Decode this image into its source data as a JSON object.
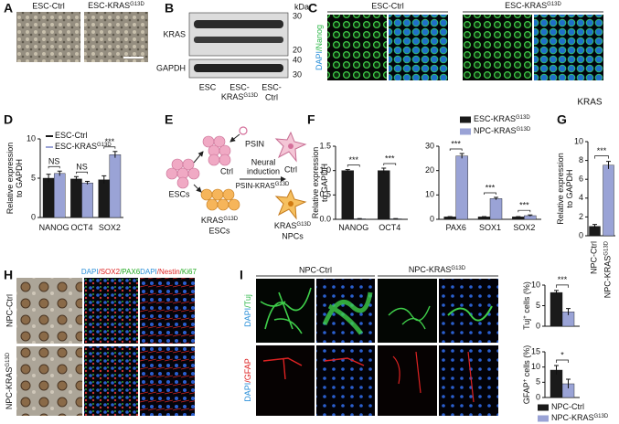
{
  "letters": [
    "A",
    "B",
    "C",
    "D",
    "E",
    "F",
    "G",
    "H",
    "I"
  ],
  "A": {
    "labels": [
      {
        "text": "ESC-Ctrl"
      },
      {
        "text": "ESC-KRAS",
        "sup": "G13D"
      }
    ]
  },
  "B": {
    "unit": "kDa",
    "markers_kras": [
      "30",
      "20"
    ],
    "markers_gapdh": [
      "40",
      "30"
    ],
    "bands": [
      "KRAS",
      "GAPDH"
    ],
    "lanes": [
      {
        "lines": [
          "ESC"
        ]
      },
      {
        "lines": [
          "ESC-",
          "KRAS"
        ],
        "sup": "G13D"
      },
      {
        "lines": [
          "ESC-",
          "Ctrl"
        ]
      }
    ]
  },
  "C": {
    "labels": [
      {
        "text": "ESC-Ctrl"
      },
      {
        "text": "ESC-KRAS",
        "sup": "G13D"
      }
    ],
    "stain": [
      "DAPI",
      "/Nanog"
    ]
  },
  "E": {
    "start": "ESCs",
    "vector": "PSIN",
    "ctrl_cell": "Ctrl",
    "ctrl_result": "Ctrl",
    "step": [
      "Neural",
      "induction"
    ],
    "vector2": {
      "text": "PSIN-KRAS",
      "sup": "G13D"
    },
    "kras_cell": {
      "text": "KRAS",
      "sup": "G13D",
      "line2": "ESCs"
    },
    "kras_result": {
      "text": "KRAS",
      "sup": "G13D",
      "line2": "NPCs"
    }
  },
  "H": {
    "stains": [
      [
        "DAPI",
        "/SOX2",
        "/PAX6"
      ],
      [
        "DAPI",
        "/Nestin",
        "/Ki67"
      ]
    ],
    "rows": [
      {
        "text": "NPC-Ctrl"
      },
      {
        "text": "NPC-KRAS",
        "sup": "G13D"
      }
    ]
  },
  "I": {
    "columns": [
      {
        "text": "NPC-Ctrl"
      },
      {
        "text": "NPC-KRAS",
        "sup": "G13D"
      }
    ],
    "rows": [
      [
        "DAPI",
        "/Tuj"
      ],
      [
        "DAPI",
        "/GFAP"
      ]
    ]
  },
  "chart_data": [
    {
      "type": "bar",
      "y_label": [
        "Relative expression",
        "to GAPDH"
      ],
      "categories": [
        "NANOG",
        "OCT4",
        "SOX2"
      ],
      "series": [
        {
          "name": "ESC-Ctrl",
          "color": "#1a1a1a",
          "values": [
            5.0,
            4.9,
            4.8
          ],
          "errors": [
            0.5,
            0.3,
            0.5
          ]
        },
        {
          "name": "ESC-KRAS",
          "name_sup": "G13D",
          "color": "#9aa3d6",
          "values": [
            5.6,
            4.4,
            8.0
          ],
          "errors": [
            0.3,
            0.2,
            0.4
          ]
        }
      ],
      "significance": [
        "NS",
        "NS",
        "***"
      ],
      "ylim": [
        0,
        10
      ],
      "yticks": [
        0,
        5,
        10
      ]
    },
    {
      "type": "bar",
      "y_label": [
        "Relative expression",
        "to GAPDH"
      ],
      "categories": [
        "NANOG",
        "OCT4"
      ],
      "series": [
        {
          "color": "#1a1a1a",
          "values": [
            1.0,
            1.0
          ],
          "errors": [
            0.02,
            0.05
          ]
        },
        {
          "color": "#9aa3d6",
          "values": [
            0.01,
            0.01
          ],
          "errors": [
            0.005,
            0.005
          ]
        }
      ],
      "significance": [
        "***",
        "***"
      ],
      "ylim": [
        0,
        1.5
      ],
      "yticks": [
        {
          "value": 0,
          "label": "0.0"
        },
        {
          "value": 0.5,
          "label": "0.5"
        },
        {
          "value": 1,
          "label": "1.0"
        },
        {
          "value": 1.5,
          "label": "1.5"
        }
      ]
    },
    {
      "type": "bar",
      "categories": [
        "PAX6",
        "SOX1",
        "SOX2"
      ],
      "series": [
        {
          "name": "ESC-KRAS",
          "name_sup": "G13D",
          "color": "#1a1a1a",
          "values": [
            1.0,
            1.0,
            1.0
          ],
          "errors": [
            0.1,
            0.1,
            0.1
          ]
        },
        {
          "name": "NPC-KRAS",
          "name_sup": "G13D",
          "color": "#9aa3d6",
          "values": [
            26,
            8.5,
            1.5
          ],
          "errors": [
            1.0,
            0.5,
            0.3
          ]
        }
      ],
      "significance": [
        "***",
        "***",
        "***"
      ],
      "ylim": [
        0,
        30
      ],
      "yticks": [
        0,
        10,
        20,
        30
      ]
    },
    {
      "type": "bar",
      "title": "KRAS",
      "y_label": [
        "Relative expression",
        "to GAPDH"
      ],
      "categories": [
        "NPC-Ctrl",
        "NPC-KRAS"
      ],
      "category_sups": [
        null,
        "G13D"
      ],
      "values": [
        1.0,
        7.5
      ],
      "errors": [
        0.2,
        0.4
      ],
      "colors": [
        "#1a1a1a",
        "#9aa3d6"
      ],
      "significance": "***",
      "ylim": [
        0,
        10
      ],
      "yticks": [
        0,
        2,
        4,
        6,
        8,
        10
      ]
    },
    {
      "type": "bar",
      "y_label": [
        {
          "text": "Tuj",
          "sup": "+",
          "after": " cells (%)"
        }
      ],
      "series": [
        {
          "color": "#1a1a1a",
          "values": [
            8.2
          ],
          "errors": [
            0.5
          ]
        },
        {
          "color": "#9aa3d6",
          "values": [
            3.5
          ],
          "errors": [
            0.8
          ]
        }
      ],
      "significance": "***",
      "ylim": [
        0,
        10
      ],
      "yticks": [
        0,
        5,
        10
      ]
    },
    {
      "type": "bar",
      "y_label": [
        {
          "text": "GFAP",
          "sup": "+",
          "after": " cells (%)"
        }
      ],
      "series": [
        {
          "name": "NPC-Ctrl",
          "color": "#1a1a1a",
          "values": [
            9.0
          ],
          "errors": [
            1.5
          ]
        },
        {
          "name": "NPC-KRAS",
          "name_sup": "G13D",
          "color": "#9aa3d6",
          "values": [
            4.5
          ],
          "errors": [
            1.5
          ]
        }
      ],
      "significance": "*",
      "ylim": [
        0,
        15
      ],
      "yticks": [
        0,
        5,
        10,
        15
      ]
    }
  ]
}
